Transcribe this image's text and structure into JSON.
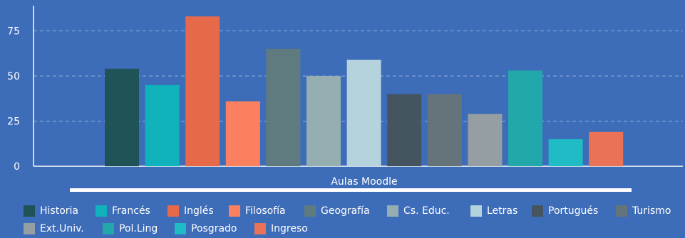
{
  "chart_data": {
    "type": "bar",
    "xlabel": "Aulas Moodle",
    "ylim": [
      0,
      85
    ],
    "yticks": [
      0,
      25,
      50,
      75
    ],
    "grid": true,
    "legend_position": "bottom",
    "series": [
      {
        "name": "Historia",
        "value": 54,
        "color": "#1f5358"
      },
      {
        "name": "Francés",
        "value": 45,
        "color": "#10b3bc"
      },
      {
        "name": "Inglés",
        "value": 83,
        "color": "#e6694a"
      },
      {
        "name": "Filosofía",
        "value": 36,
        "color": "#fa8060"
      },
      {
        "name": "Geografía",
        "value": 65,
        "color": "#5f7b80"
      },
      {
        "name": "Cs. Educ.",
        "value": 50,
        "color": "#94aeb2"
      },
      {
        "name": "Letras",
        "value": 59,
        "color": "#b5d3dc"
      },
      {
        "name": "Portugués",
        "value": 40,
        "color": "#44555f"
      },
      {
        "name": "Turismo",
        "value": 40,
        "color": "#64747a"
      },
      {
        "name": "Ext.Univ.",
        "value": 29,
        "color": "#949ea3"
      },
      {
        "name": "Pol.Ling",
        "value": 53,
        "color": "#22a7aa"
      },
      {
        "name": "Posgrado",
        "value": 15,
        "color": "#1fbcc6"
      },
      {
        "name": "Ingreso",
        "value": 19,
        "color": "#ea7256"
      }
    ]
  }
}
